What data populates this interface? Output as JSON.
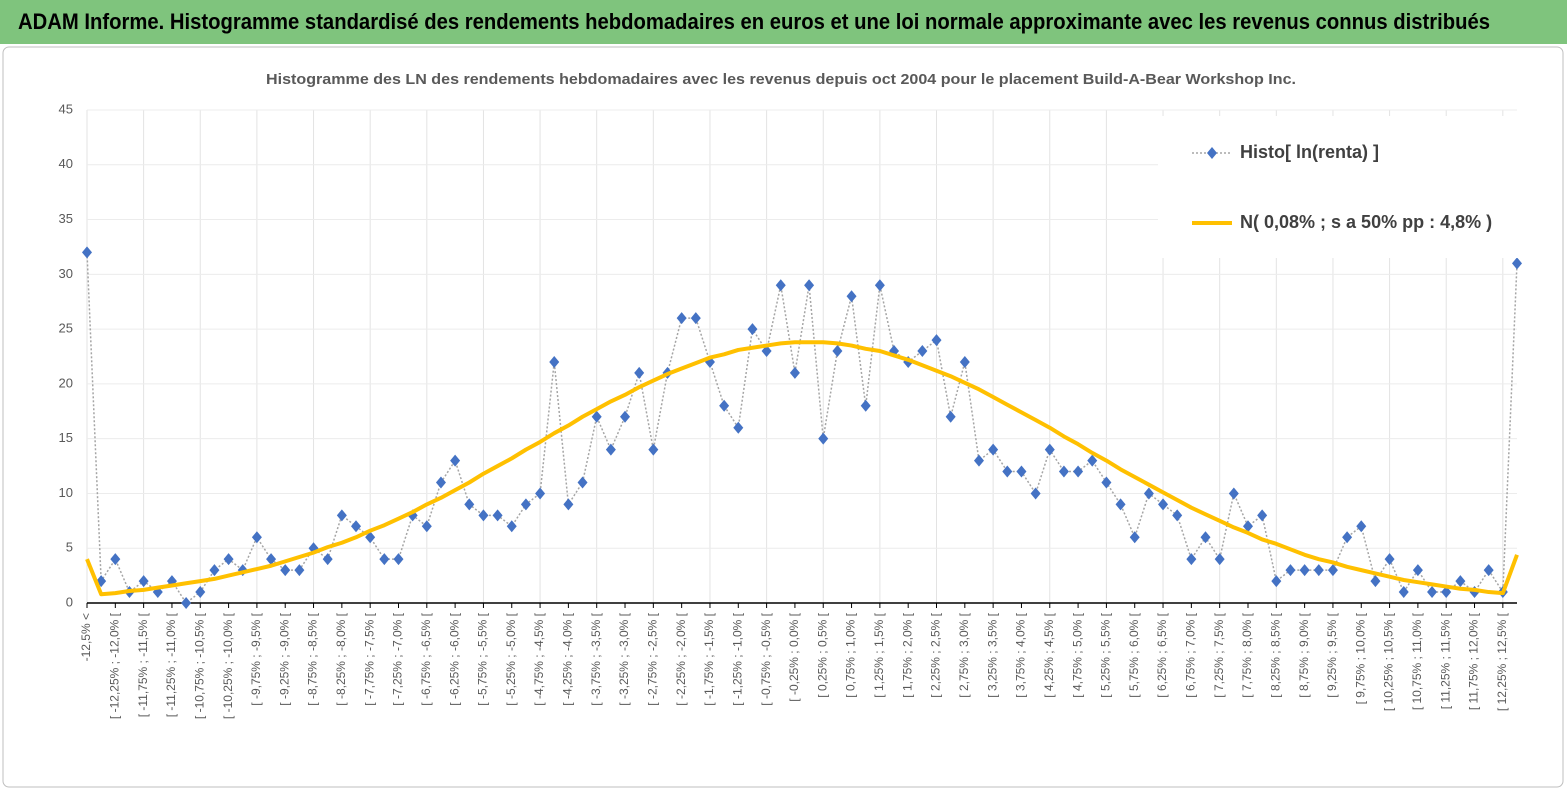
{
  "header": {
    "title": "ADAM Informe. Histogramme standardisé des rendements hebdomadaires en euros et une loi normale approximante avec les revenus connus distribués"
  },
  "chart_data": {
    "type": "line",
    "title": "Histogramme  des LN des rendements hebdomadaires avec les revenus depuis oct 2004  pour le placement Build-A-Bear Workshop Inc.",
    "categories": [
      "-12,5% <",
      null,
      "[ -12,25% ; -12,0% [",
      null,
      "[ -11,75% ; -11,5% [",
      null,
      "[ -11,25% ; -11,0% [",
      null,
      "[ -10,75% ; -10,5% [",
      null,
      "[ -10,25% ; -10,0% [",
      null,
      "[ -9,75% ; -9,5% [",
      null,
      "[ -9,25% ; -9,0% [",
      null,
      "[ -8,75% ; -8,5% [",
      null,
      "[ -8,25% ; -8,0% [",
      null,
      "[ -7,75% ; -7,5% [",
      null,
      "[ -7,25% ; -7,0% [",
      null,
      "[ -6,75% ; -6,5% [",
      null,
      "[ -6,25% ; -6,0% [",
      null,
      "[ -5,75% ; -5,5% [",
      null,
      "[ -5,25% ; -5,0% [",
      null,
      "[ -4,75% ; -4,5% [",
      null,
      "[ -4,25% ; -4,0% [",
      null,
      "[ -3,75% ; -3,5% [",
      null,
      "[ -3,25% ; -3,0% [",
      null,
      "[ -2,75% ; -2,5% [",
      null,
      "[ -2,25% ; -2,0% [",
      null,
      "[ -1,75% ; -1,5% [",
      null,
      "[ -1,25% ; -1,0% [",
      null,
      "[ -0,75% ; -0,5% [",
      null,
      "[ -0,25% ; 0,0% [",
      null,
      "[ 0,25% ; 0,5% [",
      null,
      "[ 0,75% ; 1,0% [",
      null,
      "[ 1,25% ; 1,5% [",
      null,
      "[ 1,75% ; 2,0% [",
      null,
      "[ 2,25% ; 2,5% [",
      null,
      "[ 2,75% ; 3,0% [",
      null,
      "[ 3,25% ; 3,5% [",
      null,
      "[ 3,75% ; 4,0% [",
      null,
      "[ 4,25% ; 4,5% [",
      null,
      "[ 4,75% ; 5,0% [",
      null,
      "[ 5,25% ; 5,5% [",
      null,
      "[ 5,75% ; 6,0% [",
      null,
      "[ 6,25% ; 6,5% [",
      null,
      "[ 6,75% ; 7,0% [",
      null,
      "[ 7,25% ; 7,5% [",
      null,
      "[ 7,75% ; 8,0% [",
      null,
      "[ 8,25% ; 8,5% [",
      null,
      "[ 8,75% ; 9,0% [",
      null,
      "[ 9,25% ; 9,5% [",
      null,
      "[ 9,75% ; 10,0% [",
      null,
      "[ 10,25% ; 10,5% [",
      null,
      "[ 10,75% ; 11,0% [",
      null,
      "[ 11,25% ; 11,5% [",
      null,
      "[ 11,75% ; 12,0% [",
      null,
      "[ 12,25% ; 12,5% [",
      null
    ],
    "series": [
      {
        "name": "Histo[ ln(renta) ]",
        "color": "#4472c4",
        "line_color": "#a5a5a5",
        "values": [
          32,
          2,
          4,
          1,
          2,
          1,
          2,
          0,
          1,
          3,
          4,
          3,
          6,
          4,
          3,
          3,
          5,
          4,
          8,
          7,
          6,
          4,
          4,
          8,
          7,
          11,
          13,
          9,
          8,
          8,
          7,
          9,
          10,
          22,
          9,
          11,
          17,
          14,
          17,
          21,
          14,
          21,
          26,
          26,
          22,
          18,
          16,
          25,
          23,
          29,
          21,
          29,
          15,
          23,
          28,
          18,
          29,
          23,
          22,
          23,
          24,
          17,
          22,
          13,
          14,
          12,
          12,
          10,
          14,
          12,
          12,
          13,
          11,
          9,
          6,
          10,
          9,
          8,
          4,
          6,
          4,
          10,
          7,
          8,
          2,
          3,
          3,
          3,
          3,
          6,
          7,
          2,
          4,
          1,
          3,
          1,
          1,
          2,
          1,
          3,
          1,
          31
        ]
      },
      {
        "name": "N( 0,08% ; s a 50% pp : 4,8% )",
        "color": "#ffc000",
        "values": [
          4.0,
          0.8,
          0.9,
          1.1,
          1.2,
          1.4,
          1.6,
          1.8,
          2.0,
          2.2,
          2.5,
          2.8,
          3.1,
          3.4,
          3.8,
          4.2,
          4.6,
          5.1,
          5.5,
          6.0,
          6.6,
          7.1,
          7.7,
          8.3,
          9.0,
          9.6,
          10.3,
          11.0,
          11.8,
          12.5,
          13.2,
          14.0,
          14.7,
          15.5,
          16.2,
          17.0,
          17.7,
          18.4,
          19.0,
          19.7,
          20.3,
          20.9,
          21.4,
          21.9,
          22.4,
          22.7,
          23.1,
          23.3,
          23.5,
          23.7,
          23.8,
          23.8,
          23.8,
          23.7,
          23.5,
          23.2,
          23.0,
          22.6,
          22.2,
          21.7,
          21.2,
          20.7,
          20.1,
          19.5,
          18.8,
          18.1,
          17.4,
          16.7,
          16.0,
          15.2,
          14.5,
          13.7,
          13.0,
          12.2,
          11.5,
          10.8,
          10.1,
          9.4,
          8.7,
          8.1,
          7.5,
          6.9,
          6.4,
          5.8,
          5.4,
          4.9,
          4.4,
          4.0,
          3.7,
          3.3,
          3.0,
          2.7,
          2.4,
          2.1,
          1.9,
          1.7,
          1.5,
          1.3,
          1.2,
          1.0,
          0.9,
          4.4
        ]
      }
    ],
    "ylim": [
      0,
      45
    ],
    "yticks": [
      0,
      5,
      10,
      15,
      20,
      25,
      30,
      35,
      40,
      45
    ],
    "grid": true,
    "legend": "top-right"
  }
}
